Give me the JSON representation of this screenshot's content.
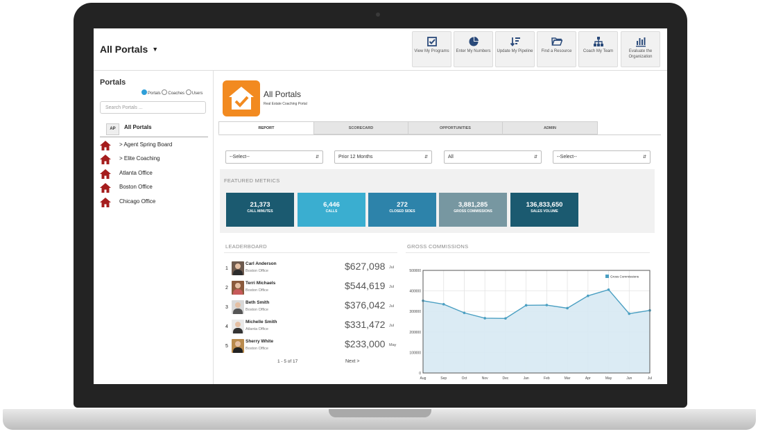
{
  "header": {
    "title": "All Portals",
    "toolbar": [
      {
        "icon": "checkbox-icon",
        "label": "View My Programs"
      },
      {
        "icon": "pie-chart-icon",
        "label": "Enter My Numbers"
      },
      {
        "icon": "sort-list-icon",
        "label": "Update My Pipeline"
      },
      {
        "icon": "folder-open-icon",
        "label": "Find a Resource"
      },
      {
        "icon": "org-chart-icon",
        "label": "Coach My Team"
      },
      {
        "icon": "bar-chart-icon",
        "label": "Evaluate the Organization"
      }
    ]
  },
  "sidebar": {
    "title": "Portals",
    "radio_options": [
      "Portals",
      "Coaches",
      "Users"
    ],
    "radio_selected": "Portals",
    "search_placeholder": "Search Portals ...",
    "all_badge": "AP",
    "all_label": "All Portals",
    "items": [
      {
        "label": "> Agent Spring Board"
      },
      {
        "label": "> Elite Coaching"
      },
      {
        "label": "Atlanta Office"
      },
      {
        "label": "Boston Office"
      },
      {
        "label": "Chicago Office"
      }
    ]
  },
  "portal": {
    "title": "All Portals",
    "subtitle": "Real Estate Coaching Portal",
    "logo_icon": "house-check-icon",
    "accent": "#f28a20"
  },
  "tabs": [
    {
      "label": "REPORT",
      "active": true
    },
    {
      "label": "SCORECARD",
      "active": false
    },
    {
      "label": "OPPORTUNITIES",
      "active": false
    },
    {
      "label": "ADMIN",
      "active": false
    }
  ],
  "filters": [
    "--Select--",
    "Prior 12 Months",
    "All",
    "--Select--"
  ],
  "featured": {
    "title": "FEATURED METRICS",
    "metrics": [
      {
        "value": "21,373",
        "label": "CALL MINUTES",
        "color": "#1b5a70"
      },
      {
        "value": "6,446",
        "label": "CALLS",
        "color": "#3aaed0"
      },
      {
        "value": "272",
        "label": "CLOSED SIDES",
        "color": "#2d83aa"
      },
      {
        "value": "3,881,285",
        "label": "GROSS COMMISSIONS",
        "color": "#7797a1"
      },
      {
        "value": "136,833,650",
        "label": "SALES VOLUME",
        "color": "#1b5a70"
      }
    ]
  },
  "leaderboard": {
    "title": "LEADERBOARD",
    "rows": [
      {
        "rank": "1",
        "name": "Carl Anderson",
        "office": "Boston Office",
        "amount": "$627,098",
        "month": "Jul"
      },
      {
        "rank": "2",
        "name": "Terri Michaels",
        "office": "Boston Office",
        "amount": "$544,619",
        "month": "Jul"
      },
      {
        "rank": "3",
        "name": "Beth Smith",
        "office": "Boston Office",
        "amount": "$376,042",
        "month": "Jul"
      },
      {
        "rank": "4",
        "name": "Michelle Smith",
        "office": "Atlanta Office",
        "amount": "$331,472",
        "month": "Jul"
      },
      {
        "rank": "5",
        "name": "Sherry White",
        "office": "Boston Office",
        "amount": "$233,000",
        "month": "May"
      }
    ],
    "pagination": "1 - 5 of 17",
    "next_label": "Next >"
  },
  "gross_commissions": {
    "title": "GROSS COMMISSIONS"
  },
  "chart_data": {
    "type": "area",
    "x": [
      "Aug",
      "Sep",
      "Oct",
      "Nov",
      "Dec",
      "Jan",
      "Feb",
      "Mar",
      "Apr",
      "May",
      "Jun",
      "Jul"
    ],
    "series": [
      {
        "name": "Gross Commissions",
        "values": [
          352000,
          335000,
          293000,
          267000,
          266000,
          330000,
          331000,
          316000,
          376000,
          406000,
          289000,
          305000
        ]
      }
    ],
    "yticks": [
      "0",
      "100000",
      "200000",
      "300000",
      "400000",
      "500000"
    ],
    "ylim": [
      0,
      500000
    ],
    "grid": true,
    "legend": "top-right",
    "line_color": "#4a9fc2",
    "fill_color": "#d7e9f3"
  }
}
